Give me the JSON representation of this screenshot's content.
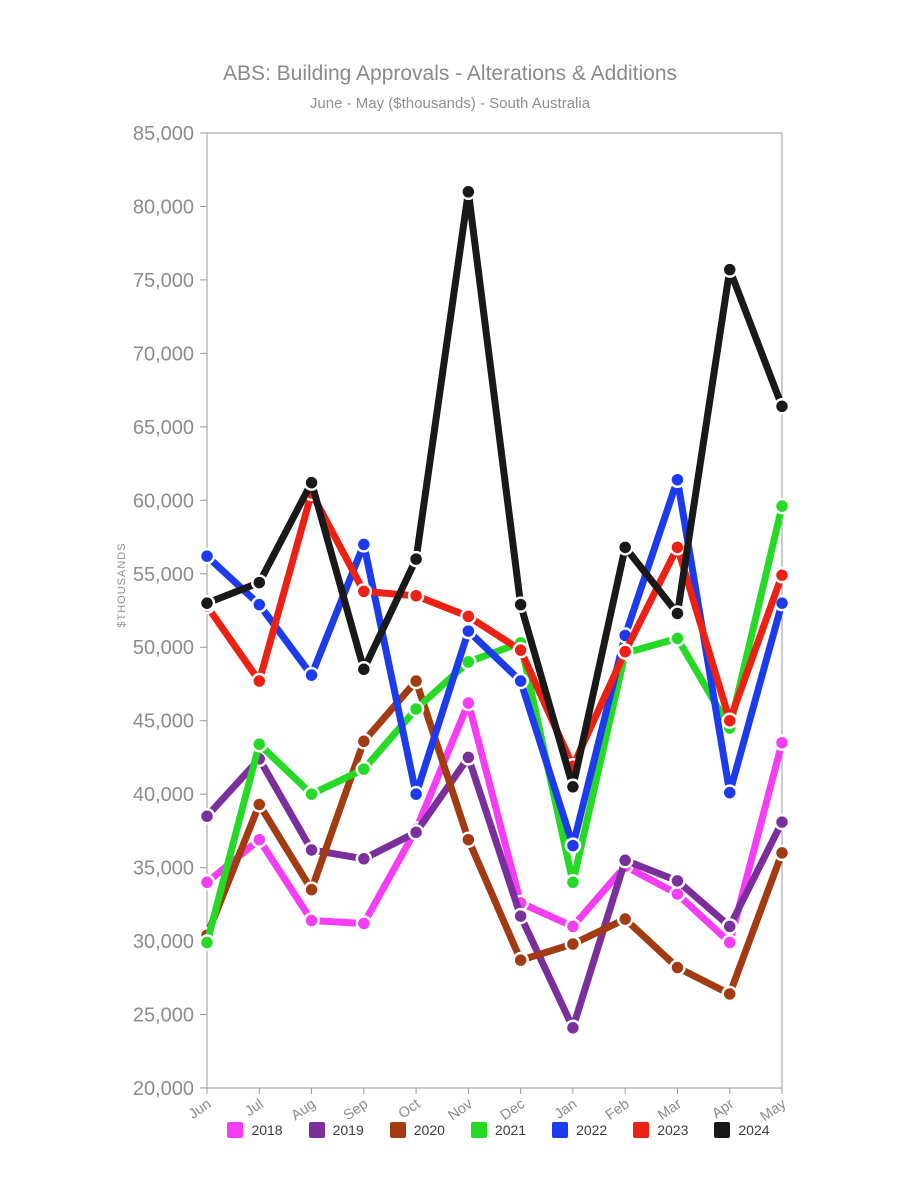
{
  "title": "ABS: Building Approvals - Alterations & Additions",
  "subtitle": "June - May ($thousands) - South Australia",
  "y_axis_title": "$THOUSANDS",
  "colors": {
    "axis": "#999999",
    "tick_label": "#8c8c8c",
    "title_text": "#8a8a8a",
    "legend_text": "#3d3d3d",
    "background": "#ffffff"
  },
  "chart_data": {
    "type": "line",
    "title": "ABS: Building Approvals - Alterations & Additions",
    "subtitle": "June - May ($thousands) - South Australia",
    "ylabel": "$THOUSANDS",
    "xlabel": "",
    "ylim": [
      20000,
      85000
    ],
    "ytick_step": 5000,
    "grid": false,
    "legend_position": "bottom",
    "marker": "circle",
    "categories": [
      "Jun",
      "Jul",
      "Aug",
      "Sep",
      "Oct",
      "Nov",
      "Dec",
      "Jan",
      "Feb",
      "Mar",
      "Apr",
      "May"
    ],
    "series": [
      {
        "name": "2018",
        "color": "#F53DF5",
        "values": [
          34000,
          36900,
          31400,
          31200,
          37600,
          46200,
          32600,
          31000,
          35100,
          33200,
          29900,
          43500
        ]
      },
      {
        "name": "2019",
        "color": "#7B2F9D",
        "values": [
          38500,
          42400,
          36200,
          35600,
          37400,
          42500,
          31700,
          24100,
          35500,
          34100,
          31000,
          38100
        ]
      },
      {
        "name": "2020",
        "color": "#A23A12",
        "values": [
          30400,
          39300,
          33500,
          43600,
          47700,
          36900,
          28700,
          29800,
          31500,
          28200,
          26400,
          36000
        ]
      },
      {
        "name": "2021",
        "color": "#25DA25",
        "values": [
          29900,
          43400,
          40000,
          41700,
          45800,
          49000,
          50300,
          34000,
          49600,
          50600,
          44500,
          59600
        ]
      },
      {
        "name": "2022",
        "color": "#1C3BEC",
        "values": [
          56200,
          52900,
          48100,
          57000,
          40000,
          51100,
          47700,
          36500,
          50800,
          61400,
          40100,
          53000
        ]
      },
      {
        "name": "2023",
        "color": "#EC2113",
        "values": [
          52800,
          47700,
          60500,
          53800,
          53500,
          52100,
          49800,
          41900,
          49700,
          56800,
          45000,
          54900
        ]
      },
      {
        "name": "2024",
        "color": "#191919",
        "values": [
          53000,
          54400,
          61200,
          48500,
          56000,
          81000,
          52900,
          40500,
          56800,
          52300,
          75700,
          66400
        ]
      }
    ]
  }
}
